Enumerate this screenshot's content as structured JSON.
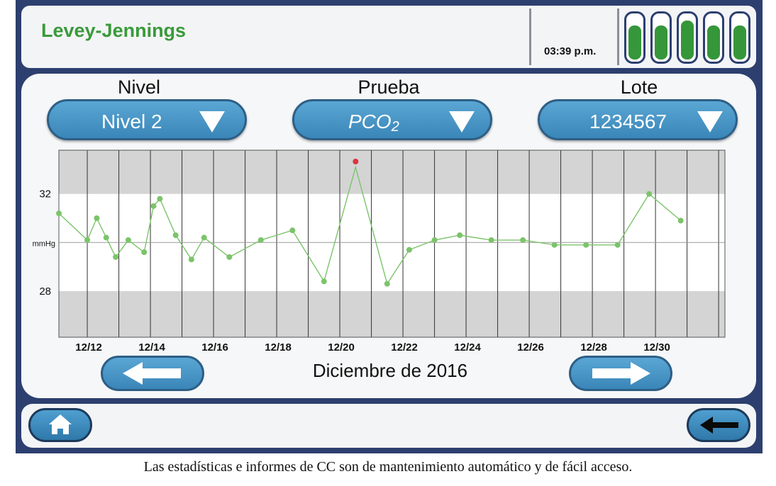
{
  "header": {
    "title": "Levey-Jennings",
    "time": "03:39 p.m.",
    "battery_levels": [
      0.78,
      0.78,
      0.88,
      0.78,
      0.78
    ]
  },
  "selectors": [
    {
      "label": "Nivel",
      "value": "Nivel 2"
    },
    {
      "label": "Prueba",
      "value": "PCO",
      "subscript": "2"
    },
    {
      "label": "Lote",
      "value": "1234567"
    }
  ],
  "chart_data": {
    "type": "line",
    "ylabel": "mmHg",
    "y_ticks": [
      {
        "value": 32,
        "label": "32"
      },
      {
        "value": 30,
        "label": "mmHg"
      },
      {
        "value": 28,
        "label": "28"
      }
    ],
    "ylim": [
      26.1,
      33.8
    ],
    "limits": {
      "upper": 32,
      "lower": 28
    },
    "x_tick_labels": [
      "12/12",
      "12/14",
      "12/16",
      "12/18",
      "12/20",
      "12/22",
      "12/24",
      "12/26",
      "12/28",
      "12/30"
    ],
    "x_tick_positions": [
      12,
      14,
      16,
      18,
      20,
      22,
      24,
      26,
      28,
      30
    ],
    "xlim": [
      11.1,
      32.2
    ],
    "series": [
      {
        "points": [
          [
            11.1,
            31.2
          ],
          [
            12.0,
            30.1
          ],
          [
            12.3,
            31.0
          ],
          [
            12.6,
            30.2
          ],
          [
            12.9,
            29.4
          ],
          [
            13.3,
            30.1
          ],
          [
            13.8,
            29.6
          ],
          [
            14.1,
            31.5
          ],
          [
            14.3,
            31.8
          ],
          [
            14.8,
            30.3
          ],
          [
            15.3,
            29.3
          ],
          [
            15.7,
            30.2
          ],
          [
            16.5,
            29.4
          ],
          [
            17.5,
            30.1
          ],
          [
            18.5,
            30.5
          ],
          [
            19.5,
            28.4
          ],
          [
            20.5,
            33.1
          ],
          [
            21.5,
            28.3
          ],
          [
            22.2,
            29.7
          ],
          [
            23.0,
            30.1
          ],
          [
            23.8,
            30.3
          ],
          [
            24.8,
            30.1
          ],
          [
            25.8,
            30.1
          ],
          [
            26.8,
            29.9
          ],
          [
            27.8,
            29.9
          ],
          [
            28.8,
            29.9
          ],
          [
            29.8,
            32.0
          ],
          [
            30.8,
            30.9
          ]
        ],
        "outlier_index": 16,
        "color": "#7bc46a"
      }
    ],
    "outlier_color": "#d9363e",
    "grid": true,
    "out_of_range_fill": "#d4d4d4",
    "caption": "Diciembre de 2016"
  },
  "nav": {
    "prev": "arrow-left-icon",
    "next": "arrow-right-icon",
    "home": "home-icon",
    "back": "back-arrow-icon"
  },
  "caption": "Las estadísticas e informes de CC son de mantenimiento automático y de fácil acceso."
}
